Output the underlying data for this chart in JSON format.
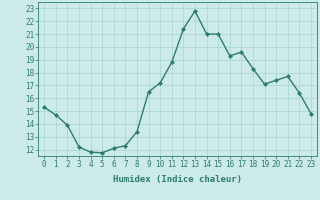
{
  "x": [
    0,
    1,
    2,
    3,
    4,
    5,
    6,
    7,
    8,
    9,
    10,
    11,
    12,
    13,
    14,
    15,
    16,
    17,
    18,
    19,
    20,
    21,
    22,
    23
  ],
  "y": [
    15.3,
    14.7,
    13.9,
    12.2,
    11.8,
    11.75,
    12.1,
    12.3,
    13.4,
    16.5,
    17.2,
    18.8,
    21.4,
    22.8,
    21.0,
    21.0,
    19.3,
    19.6,
    18.3,
    17.1,
    17.4,
    17.7,
    16.4,
    14.8
  ],
  "line_color": "#2e7d6e",
  "marker": "D",
  "markersize": 2.0,
  "linewidth": 1.0,
  "bg_color": "#cceae7",
  "grid_color": "#aad4d0",
  "xlabel": "Humidex (Indice chaleur)",
  "xlim": [
    -0.5,
    23.5
  ],
  "ylim": [
    11.5,
    23.5
  ],
  "yticks": [
    12,
    13,
    14,
    15,
    16,
    17,
    18,
    19,
    20,
    21,
    22,
    23
  ],
  "xticks": [
    0,
    1,
    2,
    3,
    4,
    5,
    6,
    7,
    8,
    9,
    10,
    11,
    12,
    13,
    14,
    15,
    16,
    17,
    18,
    19,
    20,
    21,
    22,
    23
  ],
  "tick_color": "#2e7d6e",
  "label_fontsize": 6.5,
  "tick_fontsize": 5.5
}
